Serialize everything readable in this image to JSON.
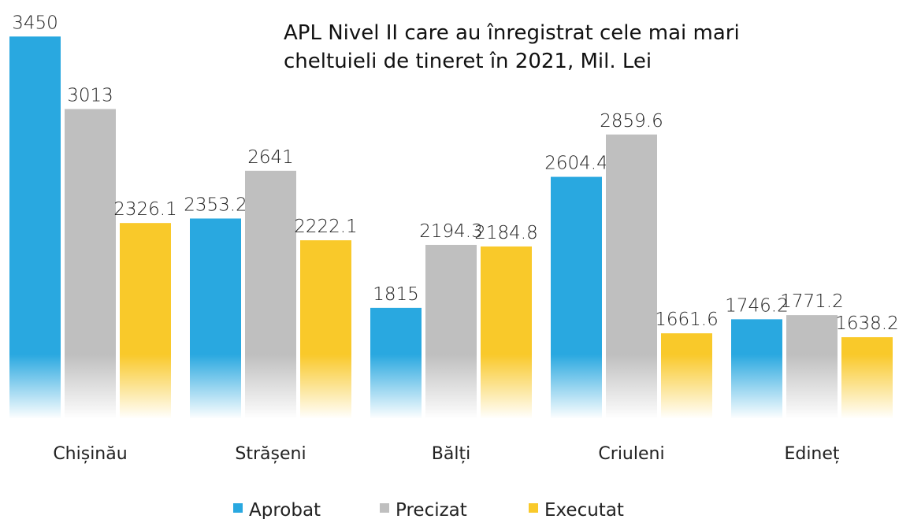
{
  "chart_data": {
    "type": "bar",
    "title": "APL Nivel II care au înregistrat cele mai mari cheltuieli de tineret în 2021, Mil. Lei",
    "categories": [
      "Chișinău",
      "Strășeni",
      "Bălți",
      "Criuleni",
      "Edineț"
    ],
    "series": [
      {
        "name": "Aprobat",
        "color": "#29a8e0",
        "values": [
          3450,
          2353.2,
          1815,
          2604.4,
          1746.2
        ]
      },
      {
        "name": "Precizat",
        "color": "#bfbfbf",
        "values": [
          3013,
          2641,
          2194.3,
          2859.6,
          1771.2
        ]
      },
      {
        "name": "Executat",
        "color": "#f9c92a",
        "values": [
          2326.1,
          2222.1,
          2184.8,
          1661.6,
          1638.2
        ]
      }
    ],
    "ylim": [
      1150,
      3670
    ]
  }
}
